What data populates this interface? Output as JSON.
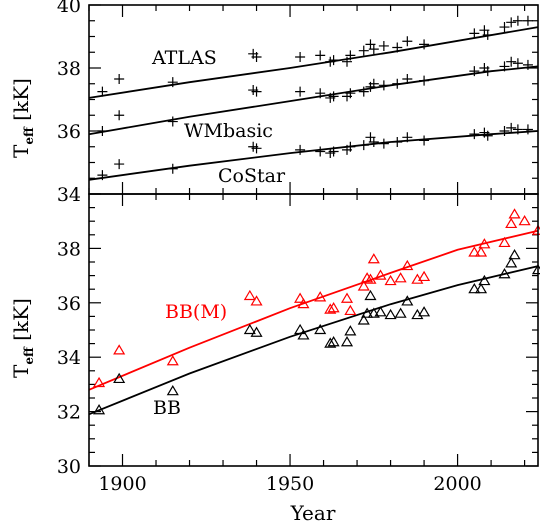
{
  "chart_data": [
    {
      "type": "scatter",
      "panel": "top",
      "xlim": [
        1890,
        2024
      ],
      "ylim": [
        34,
        40
      ],
      "yticks": [
        34,
        36,
        38,
        40
      ],
      "ylabel_main": "T",
      "ylabel_sub": "eff",
      "ylabel_unit": " [kK]",
      "xticks": [
        1900,
        1950,
        2000
      ],
      "marker": "plus",
      "series": [
        {
          "name": "ATLAS",
          "color": "#000000",
          "fit": [
            [
              1890,
              37.05
            ],
            [
              1920,
              37.55
            ],
            [
              1950,
              38.0
            ],
            [
              1980,
              38.5
            ],
            [
              2024,
              39.3
            ]
          ],
          "points": [
            [
              1894,
              37.25
            ],
            [
              1899,
              37.65
            ],
            [
              1915,
              37.55
            ],
            [
              1939,
              38.45
            ],
            [
              1940,
              38.35
            ],
            [
              1953,
              38.35
            ],
            [
              1959,
              38.4
            ],
            [
              1962,
              38.2
            ],
            [
              1963,
              38.25
            ],
            [
              1967,
              38.2
            ],
            [
              1968,
              38.4
            ],
            [
              1972,
              38.55
            ],
            [
              1974,
              38.75
            ],
            [
              1975,
              38.6
            ],
            [
              1978,
              38.7
            ],
            [
              1982,
              38.65
            ],
            [
              1985,
              38.85
            ],
            [
              1990,
              38.75
            ],
            [
              2005,
              39.1
            ],
            [
              2008,
              39.2
            ],
            [
              2009,
              39.05
            ],
            [
              2014,
              39.3
            ],
            [
              2016,
              39.45
            ],
            [
              2018,
              39.5
            ],
            [
              2021,
              39.5
            ]
          ]
        },
        {
          "name": "WMbasic",
          "color": "#000000",
          "fit": [
            [
              1890,
              35.9
            ],
            [
              1920,
              36.45
            ],
            [
              1950,
              36.95
            ],
            [
              1980,
              37.45
            ],
            [
              2010,
              37.9
            ],
            [
              2024,
              38.05
            ]
          ],
          "points": [
            [
              1894,
              36.0
            ],
            [
              1899,
              36.5
            ],
            [
              1915,
              36.3
            ],
            [
              1939,
              37.3
            ],
            [
              1940,
              37.25
            ],
            [
              1953,
              37.25
            ],
            [
              1959,
              37.2
            ],
            [
              1962,
              37.05
            ],
            [
              1963,
              37.1
            ],
            [
              1967,
              37.1
            ],
            [
              1968,
              37.2
            ],
            [
              1972,
              37.25
            ],
            [
              1974,
              37.4
            ],
            [
              1975,
              37.5
            ],
            [
              1978,
              37.45
            ],
            [
              1982,
              37.5
            ],
            [
              1985,
              37.65
            ],
            [
              1990,
              37.6
            ],
            [
              2005,
              37.9
            ],
            [
              2008,
              38.0
            ],
            [
              2009,
              37.9
            ],
            [
              2014,
              38.05
            ],
            [
              2016,
              38.2
            ],
            [
              2018,
              38.15
            ],
            [
              2021,
              38.1
            ]
          ]
        },
        {
          "name": "CoStar",
          "color": "#000000",
          "fit": [
            [
              1890,
              34.45
            ],
            [
              1920,
              34.9
            ],
            [
              1950,
              35.3
            ],
            [
              1980,
              35.65
            ],
            [
              2010,
              35.9
            ],
            [
              2024,
              36.0
            ]
          ],
          "points": [
            [
              1894,
              34.6
            ],
            [
              1899,
              34.95
            ],
            [
              1915,
              34.8
            ],
            [
              1939,
              35.5
            ],
            [
              1940,
              35.45
            ],
            [
              1953,
              35.4
            ],
            [
              1959,
              35.35
            ],
            [
              1962,
              35.3
            ],
            [
              1963,
              35.35
            ],
            [
              1967,
              35.4
            ],
            [
              1968,
              35.5
            ],
            [
              1972,
              35.55
            ],
            [
              1974,
              35.8
            ],
            [
              1975,
              35.65
            ],
            [
              1978,
              35.6
            ],
            [
              1982,
              35.65
            ],
            [
              1985,
              35.8
            ],
            [
              1990,
              35.7
            ],
            [
              2005,
              35.9
            ],
            [
              2008,
              35.95
            ],
            [
              2009,
              35.85
            ],
            [
              2014,
              36.0
            ],
            [
              2016,
              36.1
            ],
            [
              2018,
              36.05
            ],
            [
              2021,
              36.05
            ]
          ]
        }
      ]
    },
    {
      "type": "scatter",
      "panel": "bottom",
      "xlim": [
        1890,
        2024
      ],
      "ylim": [
        30,
        40
      ],
      "yticks": [
        30,
        32,
        34,
        36,
        38
      ],
      "ylabel_main": "T",
      "ylabel_sub": "eff",
      "ylabel_unit": " [kK]",
      "xlabel": "Year",
      "xticks": [
        1900,
        1950,
        2000
      ],
      "xticklabels": [
        "1900",
        "1950",
        "2000"
      ],
      "marker": "triangle",
      "series": [
        {
          "name": "BB(M)",
          "color": "#ff0000",
          "fit": [
            [
              1890,
              32.8
            ],
            [
              1920,
              34.35
            ],
            [
              1950,
              35.8
            ],
            [
              1980,
              37.1
            ],
            [
              2000,
              37.95
            ],
            [
              2024,
              38.65
            ]
          ],
          "points": [
            [
              1893,
              33.05
            ],
            [
              1899,
              34.25
            ],
            [
              1915,
              33.85
            ],
            [
              1938,
              36.25
            ],
            [
              1940,
              36.05
            ],
            [
              1953,
              36.15
            ],
            [
              1954,
              35.95
            ],
            [
              1959,
              36.2
            ],
            [
              1962,
              35.75
            ],
            [
              1963,
              35.8
            ],
            [
              1967,
              36.15
            ],
            [
              1968,
              35.7
            ],
            [
              1972,
              36.6
            ],
            [
              1973,
              36.9
            ],
            [
              1974,
              36.85
            ],
            [
              1975,
              37.6
            ],
            [
              1977,
              37.0
            ],
            [
              1980,
              36.8
            ],
            [
              1983,
              36.9
            ],
            [
              1985,
              37.35
            ],
            [
              1988,
              36.85
            ],
            [
              1990,
              36.95
            ],
            [
              2005,
              37.85
            ],
            [
              2007,
              37.85
            ],
            [
              2008,
              38.15
            ],
            [
              2014,
              38.2
            ],
            [
              2016,
              38.9
            ],
            [
              2017,
              39.25
            ],
            [
              2020,
              39.0
            ],
            [
              2024,
              38.65
            ]
          ]
        },
        {
          "name": "BB",
          "color": "#000000",
          "fit": [
            [
              1890,
              31.9
            ],
            [
              1920,
              33.4
            ],
            [
              1950,
              34.75
            ],
            [
              1980,
              35.95
            ],
            [
              2000,
              36.65
            ],
            [
              2024,
              37.35
            ]
          ],
          "points": [
            [
              1893,
              32.05
            ],
            [
              1899,
              33.2
            ],
            [
              1915,
              32.75
            ],
            [
              1938,
              35.0
            ],
            [
              1940,
              34.9
            ],
            [
              1953,
              35.0
            ],
            [
              1954,
              34.8
            ],
            [
              1959,
              35.0
            ],
            [
              1962,
              34.5
            ],
            [
              1963,
              34.55
            ],
            [
              1967,
              34.55
            ],
            [
              1968,
              34.95
            ],
            [
              1972,
              35.35
            ],
            [
              1973,
              35.6
            ],
            [
              1974,
              36.25
            ],
            [
              1975,
              35.6
            ],
            [
              1977,
              35.65
            ],
            [
              1980,
              35.55
            ],
            [
              1983,
              35.6
            ],
            [
              1985,
              36.05
            ],
            [
              1988,
              35.55
            ],
            [
              1990,
              35.65
            ],
            [
              2005,
              36.5
            ],
            [
              2007,
              36.5
            ],
            [
              2008,
              36.8
            ],
            [
              2014,
              37.05
            ],
            [
              2016,
              37.45
            ],
            [
              2017,
              37.75
            ],
            [
              2024,
              37.2
            ]
          ]
        }
      ]
    }
  ]
}
